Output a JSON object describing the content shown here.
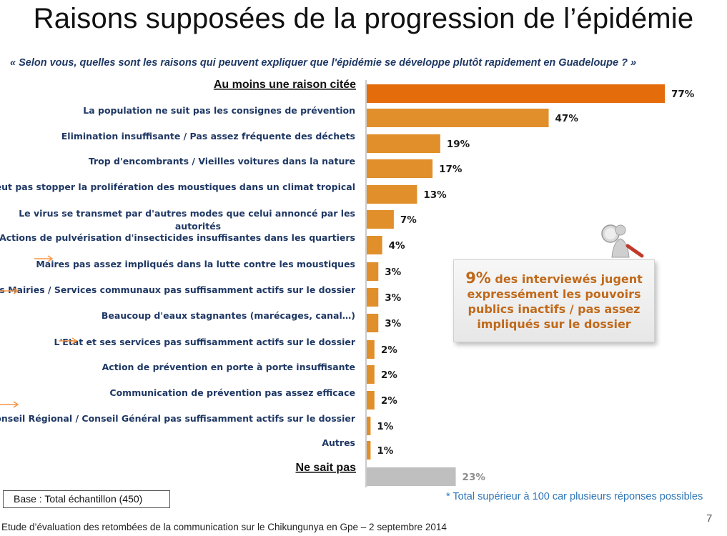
{
  "slide": {
    "title": "Raisons supposées de la progression de l’épidémie",
    "question": "« Selon vous, quelles sont les raisons qui peuvent expliquer que l'épidémie se développe plutôt rapidement en Guadeloupe ?  »",
    "callout": {
      "highlight": "9%",
      "text": " des interviewés jugent expressément les pouvoirs publics inactifs / pas assez impliqués sur le dossier",
      "icon": "magnifier-person-icon"
    },
    "base": "Base :  Total échantillon (450)",
    "note": "* Total supérieur à 100  car plusieurs réponses possibles",
    "footer": "Etude d’évaluation des retombées de la communication sur le Chikungunya en Gpe – 2 septembre 2014",
    "page_number": "7"
  },
  "colors": {
    "summary_bar": "#e46c0a",
    "item_bar": "#e08f2a",
    "dont_know_bar": "#bfbfbf",
    "label_text": "#1f3864",
    "arrow": "#f79646",
    "callout_text": "#c0691a"
  },
  "chart_data": {
    "type": "bar",
    "orientation": "horizontal",
    "value_format": "percent",
    "xlim": [
      0,
      100
    ],
    "grid": false,
    "legend": "none",
    "categories": [
      "Au moins une raison citée",
      "La population ne suit pas les consignes de prévention",
      "Elimination insuffisante / Pas assez fréquente des déchets",
      "Trop d'encombrants / Vieilles voitures dans la nature",
      "Peut pas stopper la prolifération des moustiques dans un climat tropical",
      "Le virus se transmet par d'autres modes que celui annoncé par les autorités",
      "Actions de pulvérisation d'insecticides insuffisantes dans les quartiers",
      "Maires pas assez impliqués dans la lutte contre les moustiques",
      "Les Mairies / Services communaux pas suffisamment actifs sur le dossier",
      "Beaucoup d'eaux stagnantes (marécages, canal…)",
      "L'Etat et ses services pas suffisamment actifs sur le dossier",
      "Action de prévention en porte à porte insuffisante",
      "Communication de prévention pas assez efficace",
      "Conseil Régional / Conseil Général pas suffisamment actifs sur le dossier",
      "Autres",
      "Ne sait pas"
    ],
    "values": [
      77,
      47,
      19,
      17,
      13,
      7,
      4,
      3,
      3,
      3,
      2,
      2,
      2,
      1,
      1,
      23
    ],
    "data_labels": [
      "77%",
      "47%",
      "19%",
      "17%",
      "13%",
      "7%",
      "4%",
      "3%",
      "3%",
      "3%",
      "2%",
      "2%",
      "2%",
      "1%",
      "1%",
      "23%"
    ],
    "row_kind": [
      "summary",
      "item",
      "item",
      "item",
      "item",
      "item",
      "item",
      "item",
      "item",
      "item",
      "item",
      "item",
      "item",
      "item",
      "item",
      "dont-know"
    ],
    "arrow_marked": [
      false,
      false,
      false,
      false,
      false,
      false,
      false,
      true,
      true,
      false,
      true,
      false,
      false,
      true,
      false,
      false
    ]
  }
}
